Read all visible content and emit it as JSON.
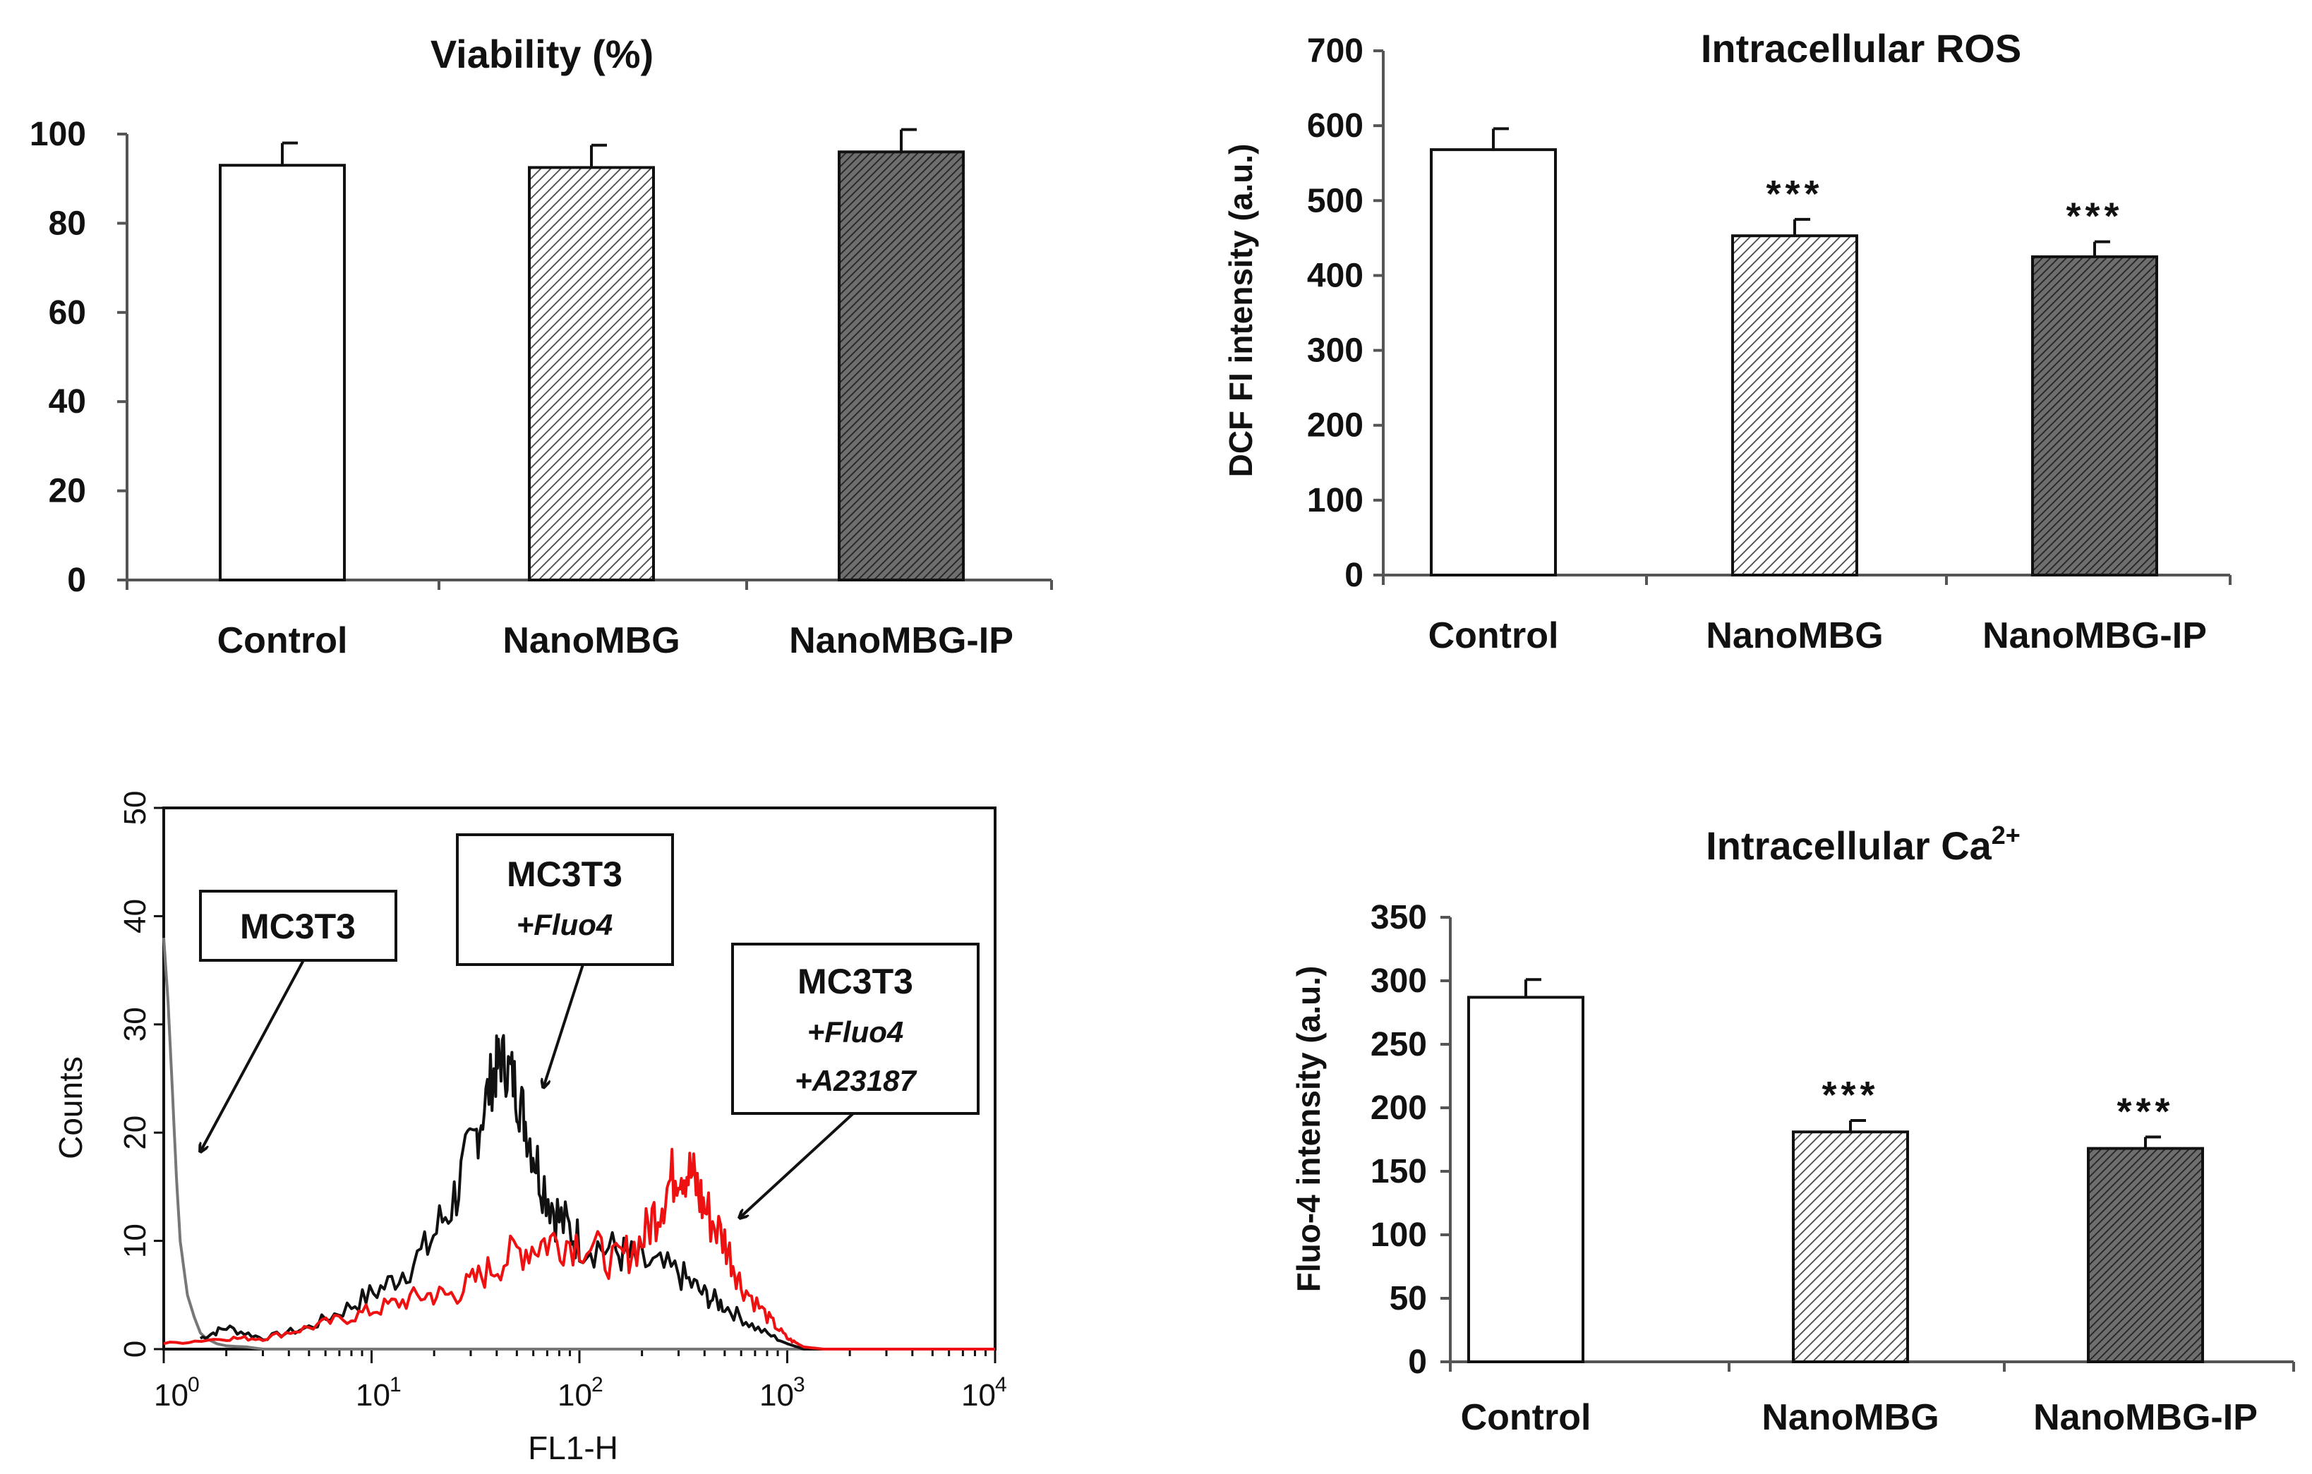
{
  "colors": {
    "control_fill": "#ffffff",
    "nanombg_fill": "#bdbdbd",
    "nanombg_ip_fill": "#6e6e6e",
    "control_trace": "#777777",
    "fluo4_trace": "#111111",
    "a23187_trace": "#ee1111"
  },
  "chart_data": [
    {
      "id": "viability",
      "type": "bar",
      "title": "Viability (%)",
      "ylabel": "",
      "categories": [
        "Control",
        "NanoMBG",
        "NanoMBG-IP"
      ],
      "values": [
        93,
        92.5,
        96
      ],
      "errors": [
        5,
        5,
        5
      ],
      "significance": [
        "",
        "",
        ""
      ],
      "ylim": [
        0,
        100
      ],
      "yticks": [
        0,
        20,
        40,
        60,
        80,
        100
      ],
      "fills": [
        "plain",
        "light-hatch",
        "dark-hatch"
      ]
    },
    {
      "id": "ros",
      "type": "bar",
      "title": "Intracellular ROS",
      "ylabel": "DCF FI intensity (a.u.)",
      "categories": [
        "Control",
        "NanoMBG",
        "NanoMBG-IP"
      ],
      "values": [
        568,
        453,
        425
      ],
      "errors": [
        28,
        22,
        20
      ],
      "significance": [
        "",
        "***",
        "***"
      ],
      "ylim": [
        0,
        700
      ],
      "yticks": [
        0,
        100,
        200,
        300,
        400,
        500,
        600,
        700
      ],
      "fills": [
        "plain",
        "light-hatch",
        "dark-hatch"
      ]
    },
    {
      "id": "flow",
      "type": "line",
      "title": "",
      "xlabel": "FL1-H",
      "ylabel": "Counts",
      "xscale": "log",
      "xlim": [
        1,
        10000
      ],
      "ylim": [
        0,
        50
      ],
      "yticks": [
        0,
        10,
        20,
        30,
        40,
        50
      ],
      "xticks": [
        {
          "base": "10",
          "exp": "0"
        },
        {
          "base": "10",
          "exp": "1"
        },
        {
          "base": "10",
          "exp": "2"
        },
        {
          "base": "10",
          "exp": "3"
        },
        {
          "base": "10",
          "exp": "4"
        }
      ],
      "series": [
        {
          "name": "MC3T3",
          "x": [
            1,
            1.05,
            1.1,
            1.15,
            1.2,
            1.3,
            1.4,
            1.5,
            1.6,
            1.8,
            2,
            2.5,
            3
          ],
          "y": [
            38,
            32,
            24,
            16,
            10,
            5,
            3,
            1.5,
            1,
            0.5,
            0.3,
            0.2,
            0
          ]
        },
        {
          "name": "MC3T3 +Fluo4",
          "x": [
            1.5,
            2,
            3,
            5,
            8,
            12,
            18,
            25,
            32,
            38,
            42,
            48,
            55,
            65,
            80,
            100,
            150,
            200,
            300,
            400,
            500,
            700,
            1000,
            1200
          ],
          "y": [
            1,
            2,
            1,
            2,
            4,
            6,
            9,
            14,
            20,
            25,
            27,
            25,
            21,
            16,
            12,
            10,
            9,
            8,
            7,
            5,
            4,
            2,
            0.5,
            0
          ]
        },
        {
          "name": "MC3T3 +Fluo4 +A23187",
          "x": [
            1,
            2,
            3,
            5,
            8,
            12,
            18,
            25,
            35,
            50,
            70,
            100,
            150,
            200,
            250,
            300,
            350,
            400,
            500,
            600,
            800,
            1000,
            1200,
            1500
          ],
          "y": [
            0.5,
            1,
            1,
            2,
            3,
            4,
            5,
            5,
            7,
            9,
            10,
            10,
            8,
            10,
            14,
            17,
            16,
            13,
            10,
            6,
            3,
            1,
            0.2,
            0
          ]
        }
      ]
    },
    {
      "id": "calcium",
      "type": "bar",
      "title": "Intracellular Ca",
      "title_sup": "2+",
      "ylabel": "Fluo-4 intensity (a.u.)",
      "categories": [
        "Control",
        "NanoMBG",
        "NanoMBG-IP"
      ],
      "values": [
        287,
        181,
        168
      ],
      "errors": [
        14,
        9,
        9
      ],
      "significance": [
        "",
        "***",
        "***"
      ],
      "ylim": [
        0,
        350
      ],
      "yticks": [
        0,
        50,
        100,
        150,
        200,
        250,
        300,
        350
      ],
      "fills": [
        "plain",
        "light-hatch",
        "dark-hatch"
      ]
    }
  ],
  "flow_labels": {
    "mc3t3": "MC3T3",
    "fluo4_l1": "MC3T3",
    "fluo4_l2": "+Fluo4",
    "a23187_l1": "MC3T3",
    "a23187_l2": "+Fluo4",
    "a23187_l3": "+A23187"
  }
}
